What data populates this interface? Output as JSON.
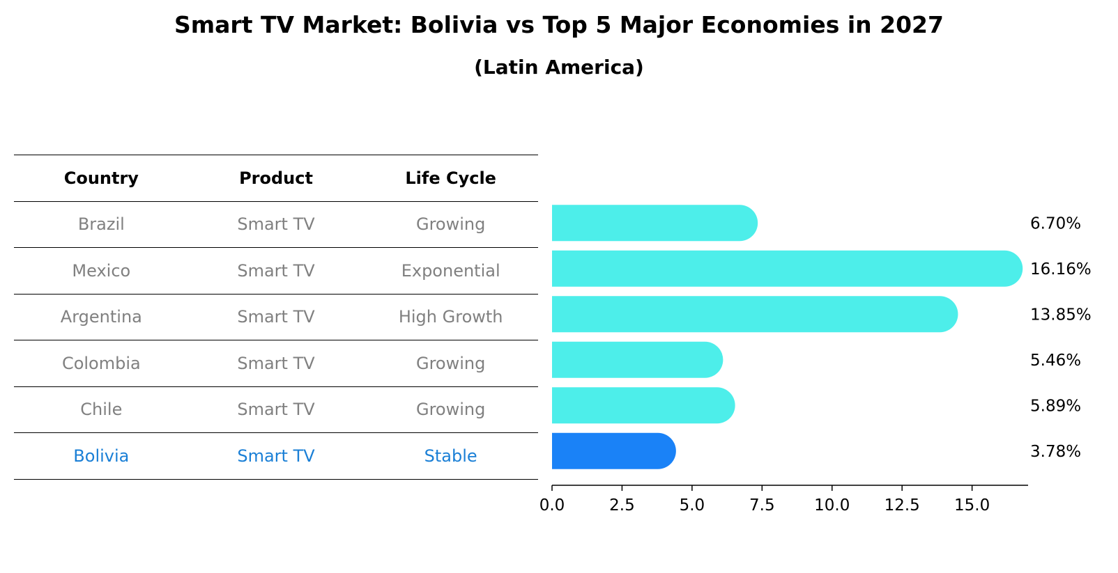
{
  "title": "Smart TV Market: Bolivia vs Top 5 Major Economies in 2027",
  "subtitle": "(Latin America)",
  "table": {
    "headers": [
      "Country",
      "Product",
      "Life Cycle"
    ],
    "rows": [
      {
        "country": "Brazil",
        "product": "Smart TV",
        "life_cycle": "Growing"
      },
      {
        "country": "Mexico",
        "product": "Smart TV",
        "life_cycle": "Exponential"
      },
      {
        "country": "Argentina",
        "product": "Smart TV",
        "life_cycle": "High Growth"
      },
      {
        "country": "Colombia",
        "product": "Smart TV",
        "life_cycle": "Growing"
      },
      {
        "country": "Chile",
        "product": "Smart TV",
        "life_cycle": "Growing"
      },
      {
        "country": "Bolivia",
        "product": "Smart TV",
        "life_cycle": "Stable"
      }
    ]
  },
  "chart_data": {
    "type": "bar",
    "orientation": "horizontal",
    "categories": [
      "Brazil",
      "Mexico",
      "Argentina",
      "Colombia",
      "Chile",
      "Bolivia"
    ],
    "values": [
      6.7,
      16.16,
      13.85,
      5.46,
      5.89,
      3.78
    ],
    "labels": [
      "6.70%",
      "16.16%",
      "13.85%",
      "5.46%",
      "5.89%",
      "3.78%"
    ],
    "highlight": "Bolivia",
    "xlim": [
      0,
      17
    ],
    "xticks": [
      0,
      2.5,
      5,
      7.5,
      10,
      12.5,
      15
    ],
    "xtick_labels": [
      "0.0",
      "2.5",
      "5.0",
      "7.5",
      "10.0",
      "12.5",
      "15.0"
    ],
    "colors": {
      "default": "#4deeea",
      "highlight": "#1a82f7"
    }
  }
}
